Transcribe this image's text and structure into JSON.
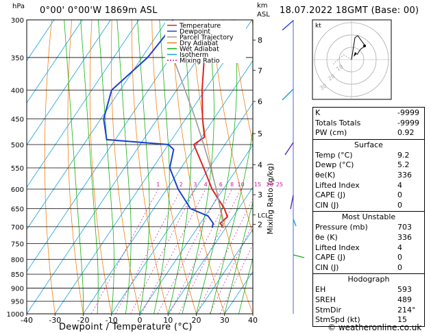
{
  "header": {
    "location": "0°00' 0°00'W 1869m ASL",
    "datetime": "18.07.2022 18GMT (Base: 00)",
    "hpa_unit": "hPa",
    "km_unit": "km",
    "asl": "ASL",
    "mixing_axis_label": "Mixing Ratio (g/kg)"
  },
  "footer": {
    "credit": "© weatheronline.co.uk"
  },
  "legend": [
    {
      "label": "Temperature",
      "color": "#e02020"
    },
    {
      "label": "Dewpoint",
      "color": "#1a3fd0"
    },
    {
      "label": "Parcel Trajectory",
      "color": "#9a9a9a"
    },
    {
      "label": "Dry Adiabat",
      "color": "#f08010"
    },
    {
      "label": "Wet Adiabat",
      "color": "#10b010"
    },
    {
      "label": "Isotherm",
      "color": "#10a0e0"
    },
    {
      "label": "Mixing Ratio",
      "color": "#d010a0"
    }
  ],
  "chart_data": {
    "type": "line",
    "title": "",
    "xlabel": "Dewpoint / Temperature (°C)",
    "ylabel": "hPa",
    "x_ticks": [
      -40,
      -30,
      -20,
      -10,
      0,
      10,
      20,
      30,
      40
    ],
    "pressure_ticks": [
      300,
      350,
      400,
      450,
      500,
      550,
      600,
      650,
      700,
      750,
      800,
      850,
      900,
      950,
      1000
    ],
    "km_ticks": [
      {
        "label": "8",
        "p": 326
      },
      {
        "label": "7",
        "p": 369
      },
      {
        "label": "6",
        "p": 419
      },
      {
        "label": "5",
        "p": 478
      },
      {
        "label": "4",
        "p": 543
      },
      {
        "label": "3",
        "p": 614
      },
      {
        "label": "2",
        "p": 693
      },
      {
        "label": "LCL",
        "p": 667
      }
    ],
    "mixing_ratio_labels": [
      "1",
      "2",
      "3",
      "4",
      "6",
      "8",
      "10",
      "15",
      "20",
      "25"
    ],
    "series": [
      {
        "name": "Temperature",
        "color": "#e02020",
        "points": [
          {
            "p": 343,
            "t": -39
          },
          {
            "p": 400,
            "t": -31
          },
          {
            "p": 450,
            "t": -24
          },
          {
            "p": 485,
            "t": -19
          },
          {
            "p": 500,
            "t": -21
          },
          {
            "p": 550,
            "t": -12
          },
          {
            "p": 600,
            "t": -4
          },
          {
            "p": 650,
            "t": 5
          },
          {
            "p": 672,
            "t": 8
          },
          {
            "p": 690,
            "t": 7
          },
          {
            "p": 703,
            "t": 9.2
          }
        ]
      },
      {
        "name": "Dewpoint",
        "color": "#1a3fd0",
        "points": [
          {
            "p": 300,
            "t": -58
          },
          {
            "p": 320,
            "t": -57
          },
          {
            "p": 350,
            "t": -58
          },
          {
            "p": 400,
            "t": -63
          },
          {
            "p": 450,
            "t": -59
          },
          {
            "p": 490,
            "t": -53
          },
          {
            "p": 500,
            "t": -30
          },
          {
            "p": 510,
            "t": -27
          },
          {
            "p": 550,
            "t": -24
          },
          {
            "p": 600,
            "t": -16
          },
          {
            "p": 650,
            "t": -7
          },
          {
            "p": 670,
            "t": 1
          },
          {
            "p": 690,
            "t": 4.5
          },
          {
            "p": 703,
            "t": 5.2
          }
        ]
      },
      {
        "name": "Parcel Trajectory",
        "color": "#9a9a9a",
        "points": [
          {
            "p": 703,
            "t": 9.2
          },
          {
            "p": 667,
            "t": 5.5
          },
          {
            "p": 600,
            "t": -2.5
          },
          {
            "p": 550,
            "t": -9.5
          },
          {
            "p": 500,
            "t": -17.5
          },
          {
            "p": 450,
            "t": -26.5
          },
          {
            "p": 400,
            "t": -37
          },
          {
            "p": 350,
            "t": -49
          },
          {
            "p": 320,
            "t": -57
          }
        ]
      }
    ]
  },
  "hodograph": {
    "unit": "kt",
    "ring_labels": [
      "10",
      "20",
      "30"
    ]
  },
  "indices_table": [
    {
      "label": "K",
      "value": "-9999"
    },
    {
      "label": "Totals Totals",
      "value": "-9999"
    },
    {
      "label": "PW (cm)",
      "value": "0.92"
    }
  ],
  "surface": {
    "title": "Surface",
    "rows": [
      {
        "label": "Temp (°C)",
        "value": "9.2"
      },
      {
        "label": "Dewp (°C)",
        "value": "5.2"
      },
      {
        "label": "θe(K)",
        "value": "336"
      },
      {
        "label": "Lifted Index",
        "value": "4"
      },
      {
        "label": "CAPE (J)",
        "value": "0"
      },
      {
        "label": "CIN (J)",
        "value": "0"
      }
    ]
  },
  "most_unstable": {
    "title": "Most Unstable",
    "rows": [
      {
        "label": "Pressure (mb)",
        "value": "703"
      },
      {
        "label": "θe (K)",
        "value": "336"
      },
      {
        "label": "Lifted Index",
        "value": "4"
      },
      {
        "label": "CAPE (J)",
        "value": "0"
      },
      {
        "label": "CIN (J)",
        "value": "0"
      }
    ]
  },
  "hodograph_table": {
    "title": "Hodograph",
    "rows": [
      {
        "label": "EH",
        "value": "593"
      },
      {
        "label": "SREH",
        "value": "489"
      },
      {
        "label": "StmDir",
        "value": "214°"
      },
      {
        "label": "StmSpd (kt)",
        "value": "15"
      }
    ]
  }
}
